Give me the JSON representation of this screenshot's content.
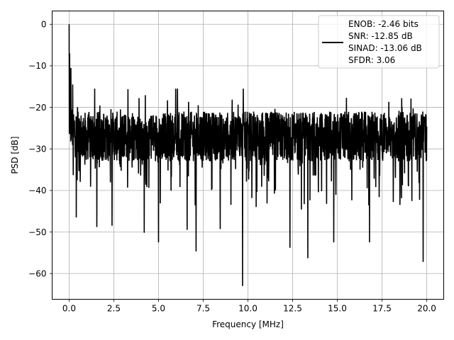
{
  "chart_data": {
    "type": "line",
    "title": "",
    "xlabel": "Frequency [MHz]",
    "ylabel": "PSD [dB]",
    "xlim": [
      -0.95,
      20.95
    ],
    "ylim": [
      -66.2,
      3.2
    ],
    "x_ticks": [
      0.0,
      2.5,
      5.0,
      7.5,
      10.0,
      12.5,
      15.0,
      17.5,
      20.0
    ],
    "x_tick_labels": [
      "0.0",
      "2.5",
      "5.0",
      "7.5",
      "10.0",
      "12.5",
      "15.0",
      "17.5",
      "20.0"
    ],
    "y_ticks": [
      0,
      -10,
      -20,
      -30,
      -40,
      -50,
      -60
    ],
    "y_tick_labels": [
      "0",
      "−10",
      "−20",
      "−30",
      "−40",
      "−50",
      "−60"
    ],
    "grid": true,
    "legend_position": "top-right",
    "legend_lines": [
      "ENOB: -2.46 bits",
      "SNR: -12.85 dB",
      "SINAD: -13.06 dB",
      "SFDR: 3.06"
    ],
    "series": [
      {
        "color": "#000000",
        "x_range": [
          0,
          20
        ],
        "description_noise_floor": "PSD noise floor spanning roughly -20 to -40 dB",
        "peaks": [
          {
            "x": 0.0,
            "y": 0.0
          },
          {
            "x": 0.03,
            "y": -7.0
          },
          {
            "x": 0.06,
            "y": -13.0
          },
          {
            "x": 0.1,
            "y": -10.5
          },
          {
            "x": 0.2,
            "y": -14.5
          },
          {
            "x": 0.4,
            "y": -46.5
          },
          {
            "x": 1.55,
            "y": -48.8
          },
          {
            "x": 2.4,
            "y": -48.5
          },
          {
            "x": 4.2,
            "y": -50.2
          },
          {
            "x": 5.0,
            "y": -52.5
          },
          {
            "x": 6.6,
            "y": -49.5
          },
          {
            "x": 7.1,
            "y": -54.7
          },
          {
            "x": 8.45,
            "y": -49.3
          },
          {
            "x": 9.7,
            "y": -63.0
          },
          {
            "x": 12.35,
            "y": -53.8
          },
          {
            "x": 13.35,
            "y": -56.3
          },
          {
            "x": 14.8,
            "y": -52.5
          },
          {
            "x": 16.8,
            "y": -52.5
          },
          {
            "x": 18.5,
            "y": -43.5
          },
          {
            "x": 19.8,
            "y": -57.2
          }
        ]
      }
    ]
  }
}
